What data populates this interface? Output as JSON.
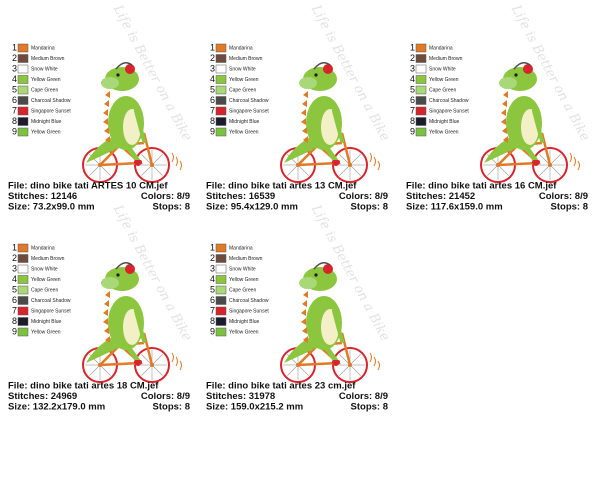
{
  "palette": [
    {
      "number": "1",
      "name": "Mandarina",
      "color": "#e07a26"
    },
    {
      "number": "2",
      "name": "Medium Brown",
      "color": "#6e4b3c"
    },
    {
      "number": "3",
      "name": "Snow White",
      "color": "#ffffff"
    },
    {
      "number": "4",
      "name": "Yellow Green",
      "color": "#8cc63e"
    },
    {
      "number": "5",
      "name": "Cape Green",
      "color": "#a8d878"
    },
    {
      "number": "6",
      "name": "Charcoal Shadow",
      "color": "#4a4a4a"
    },
    {
      "number": "7",
      "name": "Singapore Sunset",
      "color": "#d8242c"
    },
    {
      "number": "8",
      "name": "Midnight Blue",
      "color": "#1c1c2c"
    },
    {
      "number": "9",
      "name": "Yellow Green",
      "color": "#7cc241"
    }
  ],
  "motto": "Life is Better on a Bike",
  "panels": [
    {
      "file": "File: dino bike tati  ARTES 10 CM.jef",
      "stitches": "Stitches: 12146",
      "colors": "Colors: 8/9",
      "size": "Size: 73.2x99.0 mm",
      "stops": "Stops: 8"
    },
    {
      "file": "File: dino bike tati artes 13 CM.jef",
      "stitches": "Stitches: 16539",
      "colors": "Colors: 8/9",
      "size": "Size: 95.4x129.0 mm",
      "stops": "Stops: 8"
    },
    {
      "file": "File: dino bike tati artes 16 CM.jef",
      "stitches": "Stitches: 21452",
      "colors": "Colors: 8/9",
      "size": "Size: 117.6x159.0 mm",
      "stops": "Stops: 8"
    },
    {
      "file": "File: dino bike tati artes 18 CM.jef",
      "stitches": "Stitches: 24969",
      "colors": "Colors: 8/9",
      "size": "Size: 132.2x179.0 mm",
      "stops": "Stops: 8"
    },
    {
      "file": "File: dino bike tati artes 23 cm.jef",
      "stitches": "Stitches: 31978",
      "colors": "Colors: 8/9",
      "size": "Size: 159.0x215.2 mm",
      "stops": "Stops: 8"
    }
  ]
}
